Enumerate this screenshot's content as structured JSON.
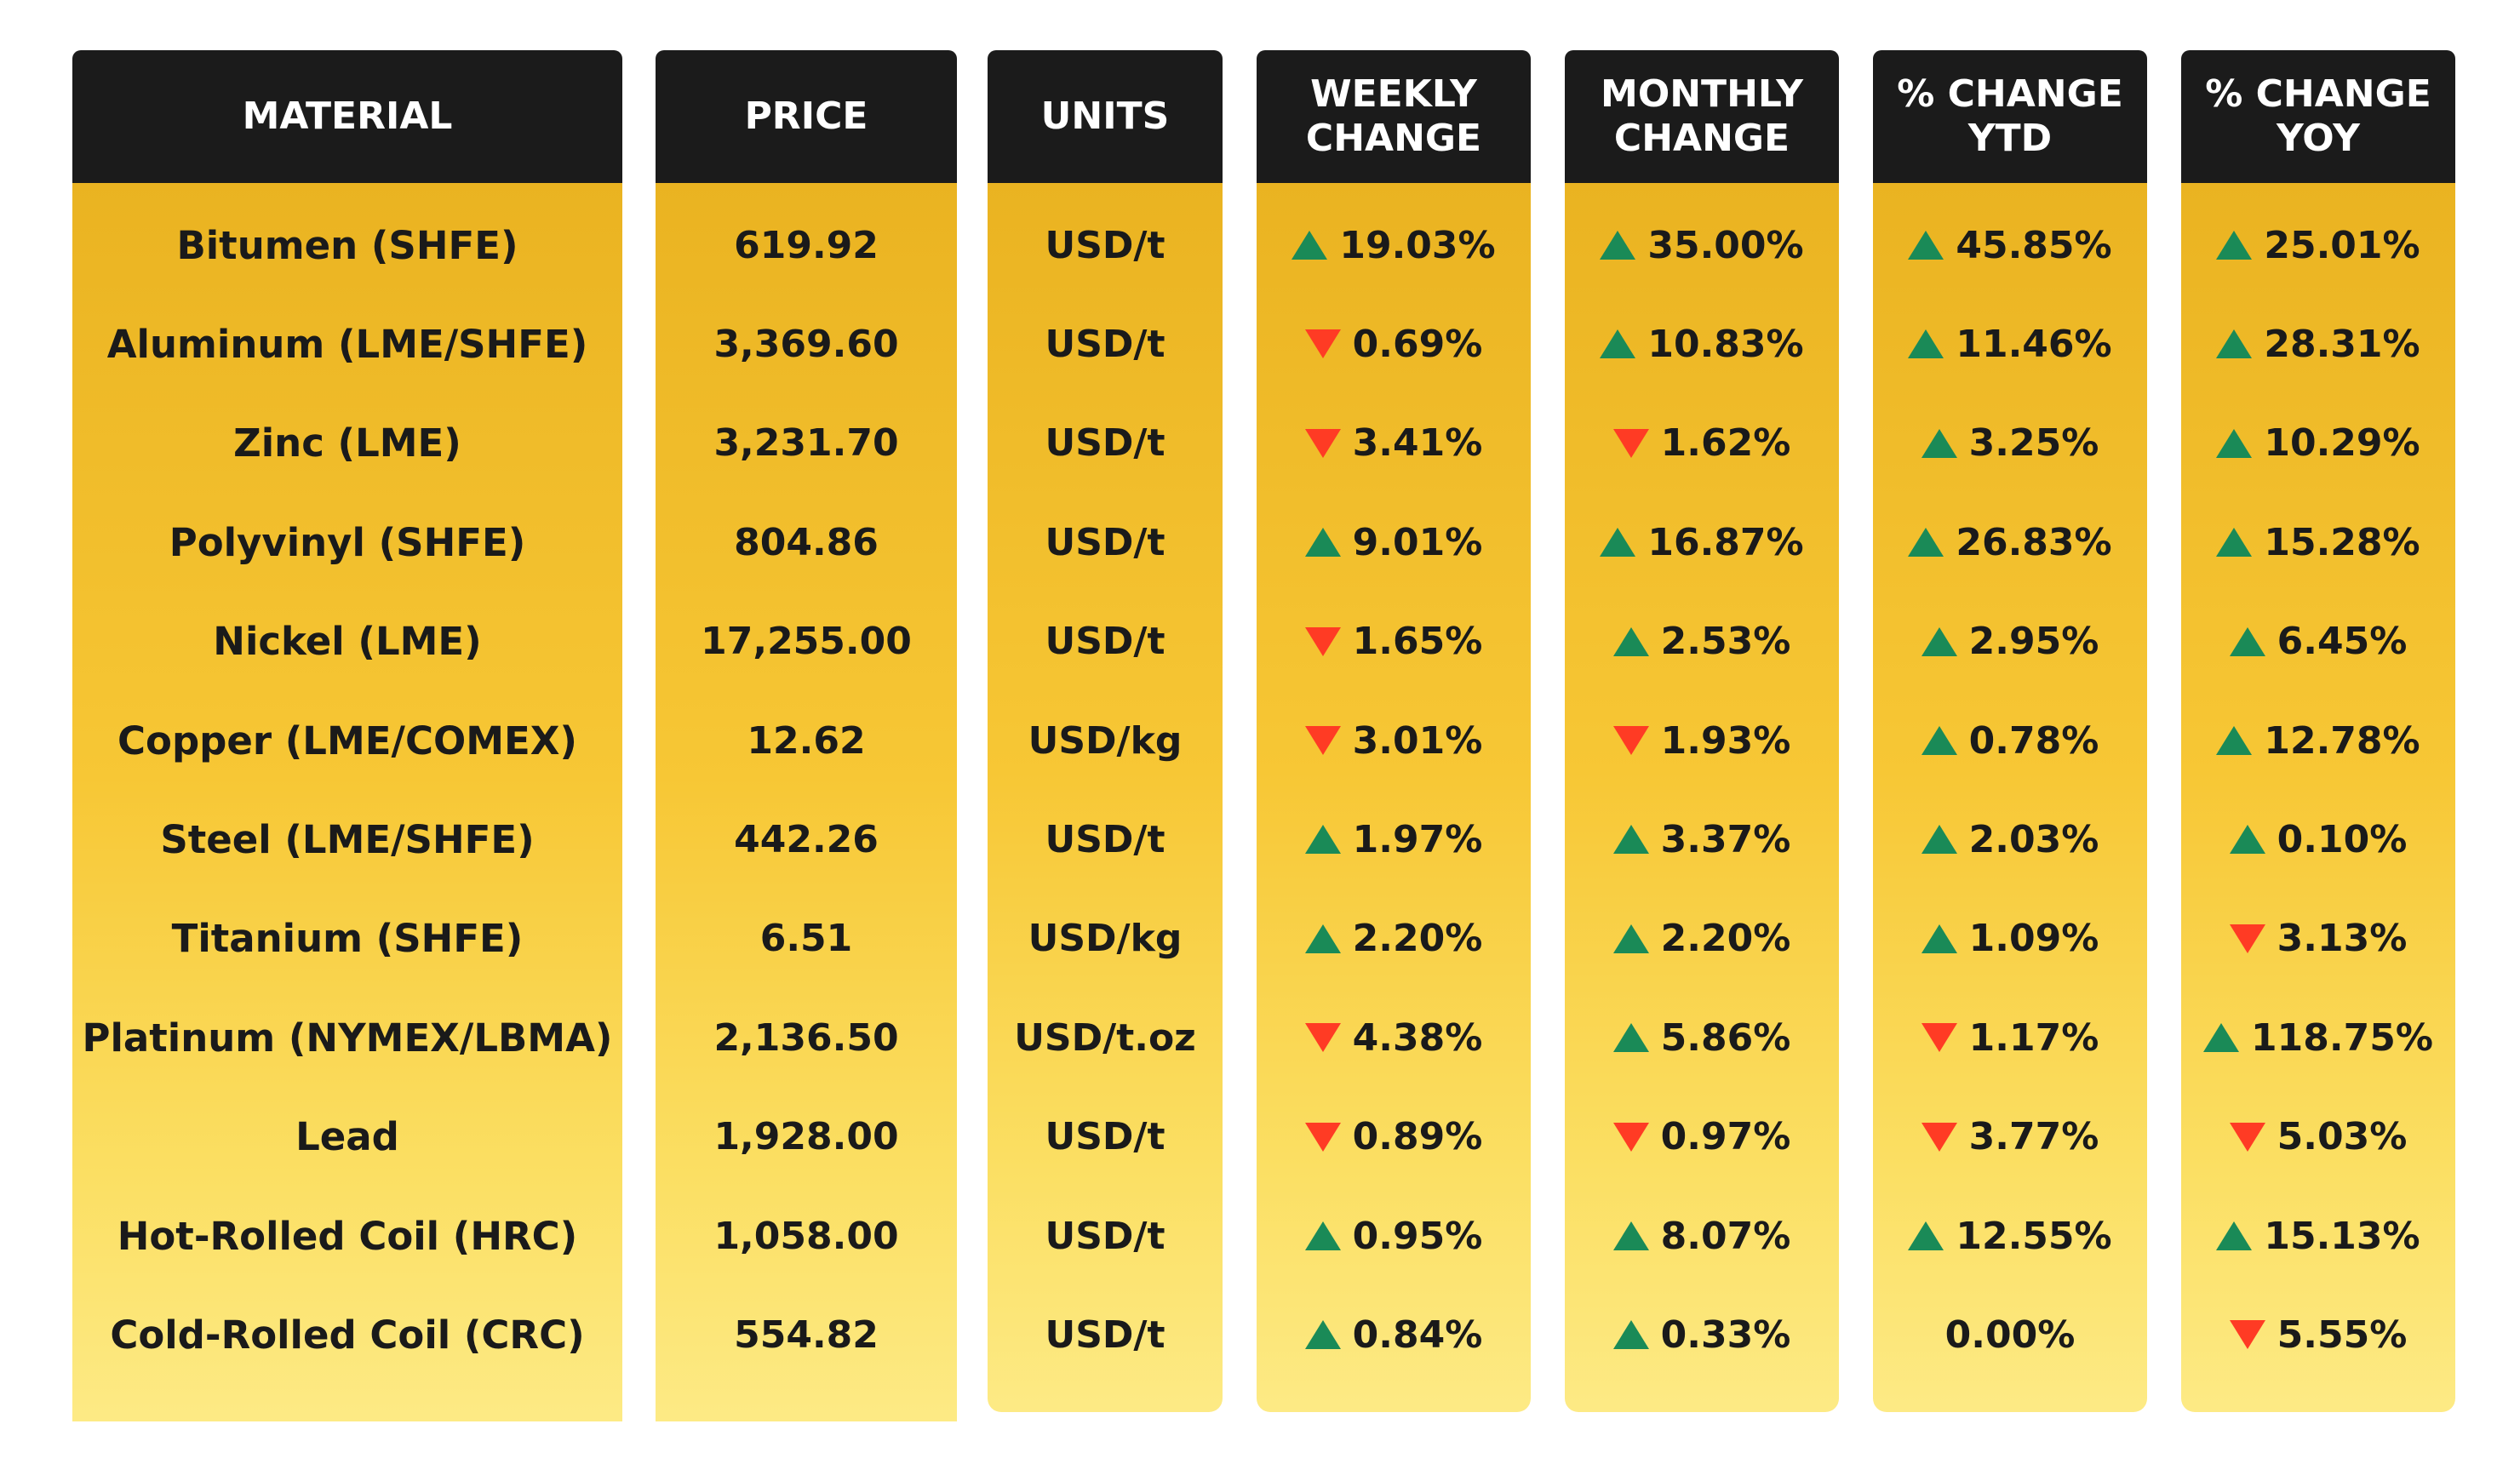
{
  "chart_data": {
    "type": "table",
    "columns": [
      "MATERIAL",
      "PRICE",
      "UNITS",
      "WEEKLY\nCHANGE",
      "MONTHLY\nCHANGE",
      "% CHANGE\nYTD",
      "% CHANGE\nYOY"
    ],
    "rows": [
      {
        "material": "Bitumen (SHFE)",
        "price": "619.92",
        "units": "USD/t",
        "weekly": {
          "text": "19.03%",
          "dir": "up"
        },
        "monthly": {
          "text": "35.00%",
          "dir": "up"
        },
        "ytd": {
          "text": "45.85%",
          "dir": "up"
        },
        "yoy": {
          "text": "25.01%",
          "dir": "up"
        }
      },
      {
        "material": "Aluminum (LME/SHFE)",
        "price": "3,369.60",
        "units": "USD/t",
        "weekly": {
          "text": "0.69%",
          "dir": "down"
        },
        "monthly": {
          "text": "10.83%",
          "dir": "up"
        },
        "ytd": {
          "text": "11.46%",
          "dir": "up"
        },
        "yoy": {
          "text": "28.31%",
          "dir": "up"
        }
      },
      {
        "material": "Zinc (LME)",
        "price": "3,231.70",
        "units": "USD/t",
        "weekly": {
          "text": "3.41%",
          "dir": "down"
        },
        "monthly": {
          "text": "1.62%",
          "dir": "down"
        },
        "ytd": {
          "text": "3.25%",
          "dir": "up"
        },
        "yoy": {
          "text": "10.29%",
          "dir": "up"
        }
      },
      {
        "material": "Polyvinyl (SHFE)",
        "price": "804.86",
        "units": "USD/t",
        "weekly": {
          "text": "9.01%",
          "dir": "up"
        },
        "monthly": {
          "text": "16.87%",
          "dir": "up"
        },
        "ytd": {
          "text": "26.83%",
          "dir": "up"
        },
        "yoy": {
          "text": "15.28%",
          "dir": "up"
        }
      },
      {
        "material": "Nickel (LME)",
        "price": "17,255.00",
        "units": "USD/t",
        "weekly": {
          "text": "1.65%",
          "dir": "down"
        },
        "monthly": {
          "text": "2.53%",
          "dir": "up"
        },
        "ytd": {
          "text": "2.95%",
          "dir": "up"
        },
        "yoy": {
          "text": "6.45%",
          "dir": "up"
        }
      },
      {
        "material": "Copper (LME/COMEX)",
        "price": "12.62",
        "units": "USD/kg",
        "weekly": {
          "text": "3.01%",
          "dir": "down"
        },
        "monthly": {
          "text": "1.93%",
          "dir": "down"
        },
        "ytd": {
          "text": "0.78%",
          "dir": "up"
        },
        "yoy": {
          "text": "12.78%",
          "dir": "up"
        }
      },
      {
        "material": "Steel (LME/SHFE)",
        "price": "442.26",
        "units": "USD/t",
        "weekly": {
          "text": "1.97%",
          "dir": "up"
        },
        "monthly": {
          "text": "3.37%",
          "dir": "up"
        },
        "ytd": {
          "text": "2.03%",
          "dir": "up"
        },
        "yoy": {
          "text": "0.10%",
          "dir": "up"
        }
      },
      {
        "material": "Titanium (SHFE)",
        "price": "6.51",
        "units": "USD/kg",
        "weekly": {
          "text": "2.20%",
          "dir": "up"
        },
        "monthly": {
          "text": "2.20%",
          "dir": "up"
        },
        "ytd": {
          "text": "1.09%",
          "dir": "up"
        },
        "yoy": {
          "text": "3.13%",
          "dir": "down"
        }
      },
      {
        "material": "Platinum (NYMEX/LBMA)",
        "price": "2,136.50",
        "units": "USD/t.oz",
        "weekly": {
          "text": "4.38%",
          "dir": "down"
        },
        "monthly": {
          "text": "5.86%",
          "dir": "up"
        },
        "ytd": {
          "text": "1.17%",
          "dir": "down"
        },
        "yoy": {
          "text": "118.75%",
          "dir": "up"
        }
      },
      {
        "material": "Lead",
        "price": "1,928.00",
        "units": "USD/t",
        "weekly": {
          "text": "0.89%",
          "dir": "down"
        },
        "monthly": {
          "text": "0.97%",
          "dir": "down"
        },
        "ytd": {
          "text": "3.77%",
          "dir": "down"
        },
        "yoy": {
          "text": "5.03%",
          "dir": "down"
        }
      },
      {
        "material": "Hot-Rolled Coil (HRC)",
        "price": "1,058.00",
        "units": "USD/t",
        "weekly": {
          "text": "0.95%",
          "dir": "up"
        },
        "monthly": {
          "text": "8.07%",
          "dir": "up"
        },
        "ytd": {
          "text": "12.55%",
          "dir": "up"
        },
        "yoy": {
          "text": "15.13%",
          "dir": "up"
        }
      },
      {
        "material": "Cold-Rolled Coil (CRC)",
        "price": "554.82",
        "units": "USD/t",
        "weekly": {
          "text": "0.84%",
          "dir": "up"
        },
        "monthly": {
          "text": "0.33%",
          "dir": "up"
        },
        "ytd": {
          "text": "0.00%",
          "dir": "none"
        },
        "yoy": {
          "text": "5.55%",
          "dir": "down"
        }
      }
    ]
  },
  "colors": {
    "header_bg": "#1b1b1b",
    "header_text": "#ffffff",
    "body_gradient_top": "#eab321",
    "body_gradient_bottom": "#fdea85",
    "up_arrow": "#1a8a57",
    "down_arrow": "#ff3b24",
    "cell_text": "#1a1a1a"
  },
  "icons": {
    "up": "triangle-up-icon",
    "down": "triangle-down-icon"
  }
}
